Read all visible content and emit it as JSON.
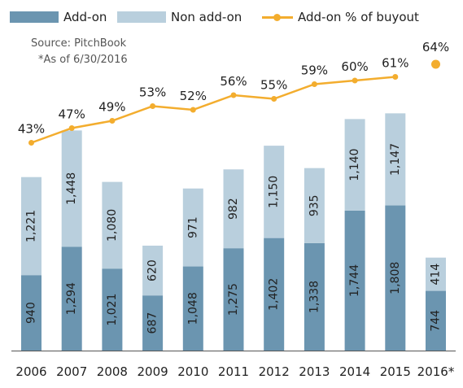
{
  "legend": {
    "addon": "Add-on",
    "nonaddon": "Non add-on",
    "pct": "Add-on % of buyout"
  },
  "source_line": "Source: PitchBook",
  "asof_line": "*As of 6/30/2016",
  "colors": {
    "addon": "#6b95b0",
    "nonaddon": "#b9cfdd",
    "line": "#f3ad2e",
    "axis": "#555555",
    "text": "#222222"
  },
  "chart_data": {
    "type": "bar",
    "stacked": true,
    "categories": [
      "2006",
      "2007",
      "2008",
      "2009",
      "2010",
      "2011",
      "2012",
      "2013",
      "2014",
      "2015",
      "2016*"
    ],
    "series": [
      {
        "name": "Add-on",
        "values": [
          940,
          1294,
          1021,
          687,
          1048,
          1275,
          1402,
          1338,
          1744,
          1808,
          744
        ],
        "labels": [
          "940",
          "1,294",
          "1,021",
          "687",
          "1,048",
          "1,275",
          "1,402",
          "1,338",
          "1,744",
          "1,808",
          "744"
        ]
      },
      {
        "name": "Non add-on",
        "values": [
          1221,
          1448,
          1080,
          620,
          971,
          982,
          1150,
          935,
          1140,
          1147,
          414
        ],
        "labels": [
          "1,221",
          "1,448",
          "1,080",
          "620",
          "971",
          "982",
          "1,150",
          "935",
          "1,140",
          "1,147",
          "414"
        ]
      }
    ],
    "line_series": {
      "name": "Add-on % of buyout",
      "values": [
        43,
        47,
        49,
        53,
        52,
        56,
        55,
        59,
        60,
        61,
        64
      ],
      "labels": [
        "43%",
        "47%",
        "49%",
        "53%",
        "52%",
        "56%",
        "55%",
        "59%",
        "60%",
        "61%",
        "64%"
      ],
      "connected_count": 10
    },
    "legend_position": "top",
    "grid": false
  }
}
